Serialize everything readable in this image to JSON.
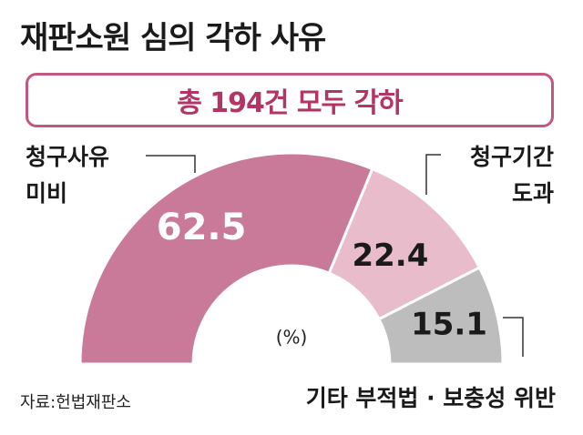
{
  "title": "재판소원 심의 각하 사유",
  "banner": "총 194건 모두 각하",
  "source": "자료:헌법재판소",
  "chart_data": {
    "type": "pie",
    "shape": "half-donut",
    "unit": "(%)",
    "series": [
      {
        "label_lines": [
          "청구사유",
          "미비"
        ],
        "value": 62.5,
        "display": "62.5",
        "color": "#c97a99",
        "value_color": "#ffffff"
      },
      {
        "label_lines": [
          "청구기간",
          "도과"
        ],
        "value": 22.4,
        "display": "22.4",
        "color": "#e9bccb",
        "value_color": "#1a1a1a"
      },
      {
        "label_lines": [
          "기타 부적법 · 보충성 위반"
        ],
        "value": 15.1,
        "display": "15.1",
        "color": "#bdbdbd",
        "value_color": "#1a1a1a"
      }
    ]
  }
}
